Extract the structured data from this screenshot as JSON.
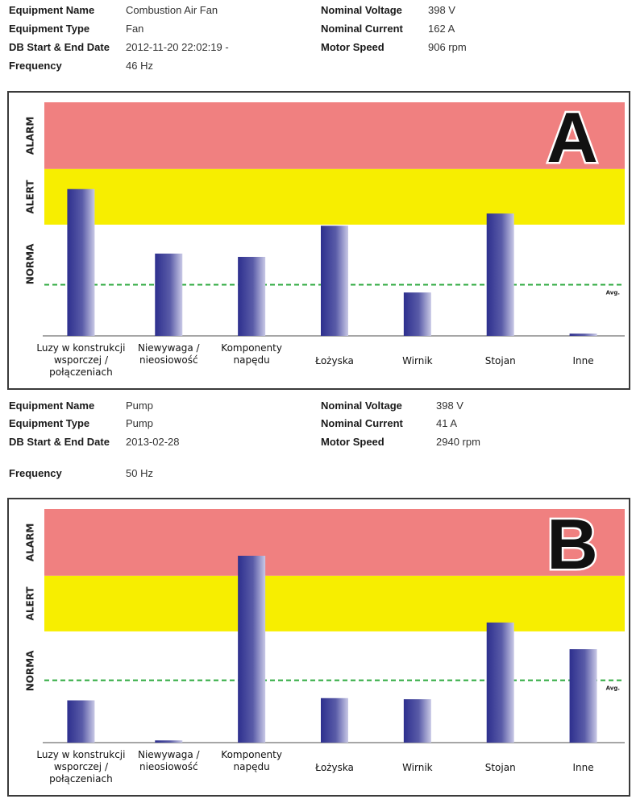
{
  "chart_data": [
    {
      "type": "bar",
      "label": "A",
      "zones": [
        "ALARM",
        "ALERT",
        "NORMA"
      ],
      "zone_colors": {
        "alarm": "#f08080",
        "alert": "#f7ee00",
        "norma": "#ffffff",
        "bar": "#2d2f8e",
        "avg": "#2eaa3f"
      },
      "avg_label": "Avg.",
      "y_scale": {
        "norma_top": 50,
        "alert_top": 75,
        "max": 105
      },
      "avg_value": 23,
      "categories": [
        "Luzy w konstrukcji wsporczej / połączeniach",
        "Niewywaga / nieosiowość",
        "Komponenty napędu",
        "Łożyska",
        "Wirnik",
        "Stojan",
        "Inne"
      ],
      "category_lines": [
        [
          "Luzy w konstrukcji",
          "wsporczej /",
          "połączeniach"
        ],
        [
          "Niewywaga /",
          "nieosiowość"
        ],
        [
          "Komponenty",
          "napędu"
        ],
        [
          "Łożyska"
        ],
        [
          "Wirnik"
        ],
        [
          "Stojan"
        ],
        [
          "Inne"
        ]
      ],
      "values": [
        66,
        37,
        35.5,
        49.5,
        19.5,
        55,
        1
      ]
    },
    {
      "type": "bar",
      "label": "B",
      "zones": [
        "ALARM",
        "ALERT",
        "NORMA"
      ],
      "zone_colors": {
        "alarm": "#f08080",
        "alert": "#f7ee00",
        "norma": "#ffffff",
        "bar": "#2d2f8e",
        "avg": "#2eaa3f"
      },
      "avg_label": "Avg.",
      "y_scale": {
        "norma_top": 50,
        "alert_top": 75,
        "max": 105
      },
      "avg_value": 28,
      "categories": [
        "Luzy w konstrukcji wsporczej / połączeniach",
        "Niewywaga / nieosiowość",
        "Komponenty napędu",
        "Łożyska",
        "Wirnik",
        "Stojan",
        "Inne"
      ],
      "category_lines": [
        [
          "Luzy w konstrukcji",
          "wsporczej /",
          "połączeniach"
        ],
        [
          "Niewywaga /",
          "nieosiowość"
        ],
        [
          "Komponenty",
          "napędu"
        ],
        [
          "Łożyska"
        ],
        [
          "Wirnik"
        ],
        [
          "Stojan"
        ],
        [
          "Inne"
        ]
      ],
      "values": [
        19,
        1,
        84,
        20,
        19.5,
        54,
        42
      ]
    }
  ],
  "info": [
    {
      "equipment_name_label": "Equipment Name",
      "equipment_name": "Combustion Air Fan",
      "equipment_type_label": "Equipment Type",
      "equipment_type": "Fan",
      "db_dates_label": "DB Start & End Date",
      "db_dates": "2012-11-20 22:02:19 -",
      "frequency_label": "Frequency",
      "frequency": "46 Hz",
      "voltage_label": "Nominal Voltage",
      "voltage": "398 V",
      "current_label": "Nominal Current",
      "current": "162 A",
      "speed_label": "Motor Speed",
      "speed": "906 rpm"
    },
    {
      "equipment_name_label": "Equipment Name",
      "equipment_name": "Pump",
      "equipment_type_label": "Equipment Type",
      "equipment_type": "Pump",
      "db_dates_label": "DB Start & End Date",
      "db_dates": "2013-02-28",
      "frequency_label": "Frequency",
      "frequency": "50 Hz",
      "voltage_label": "Nominal Voltage",
      "voltage": "398 V",
      "current_label": "Nominal Current",
      "current": "41 A",
      "speed_label": "Motor Speed",
      "speed": "2940 rpm"
    }
  ]
}
